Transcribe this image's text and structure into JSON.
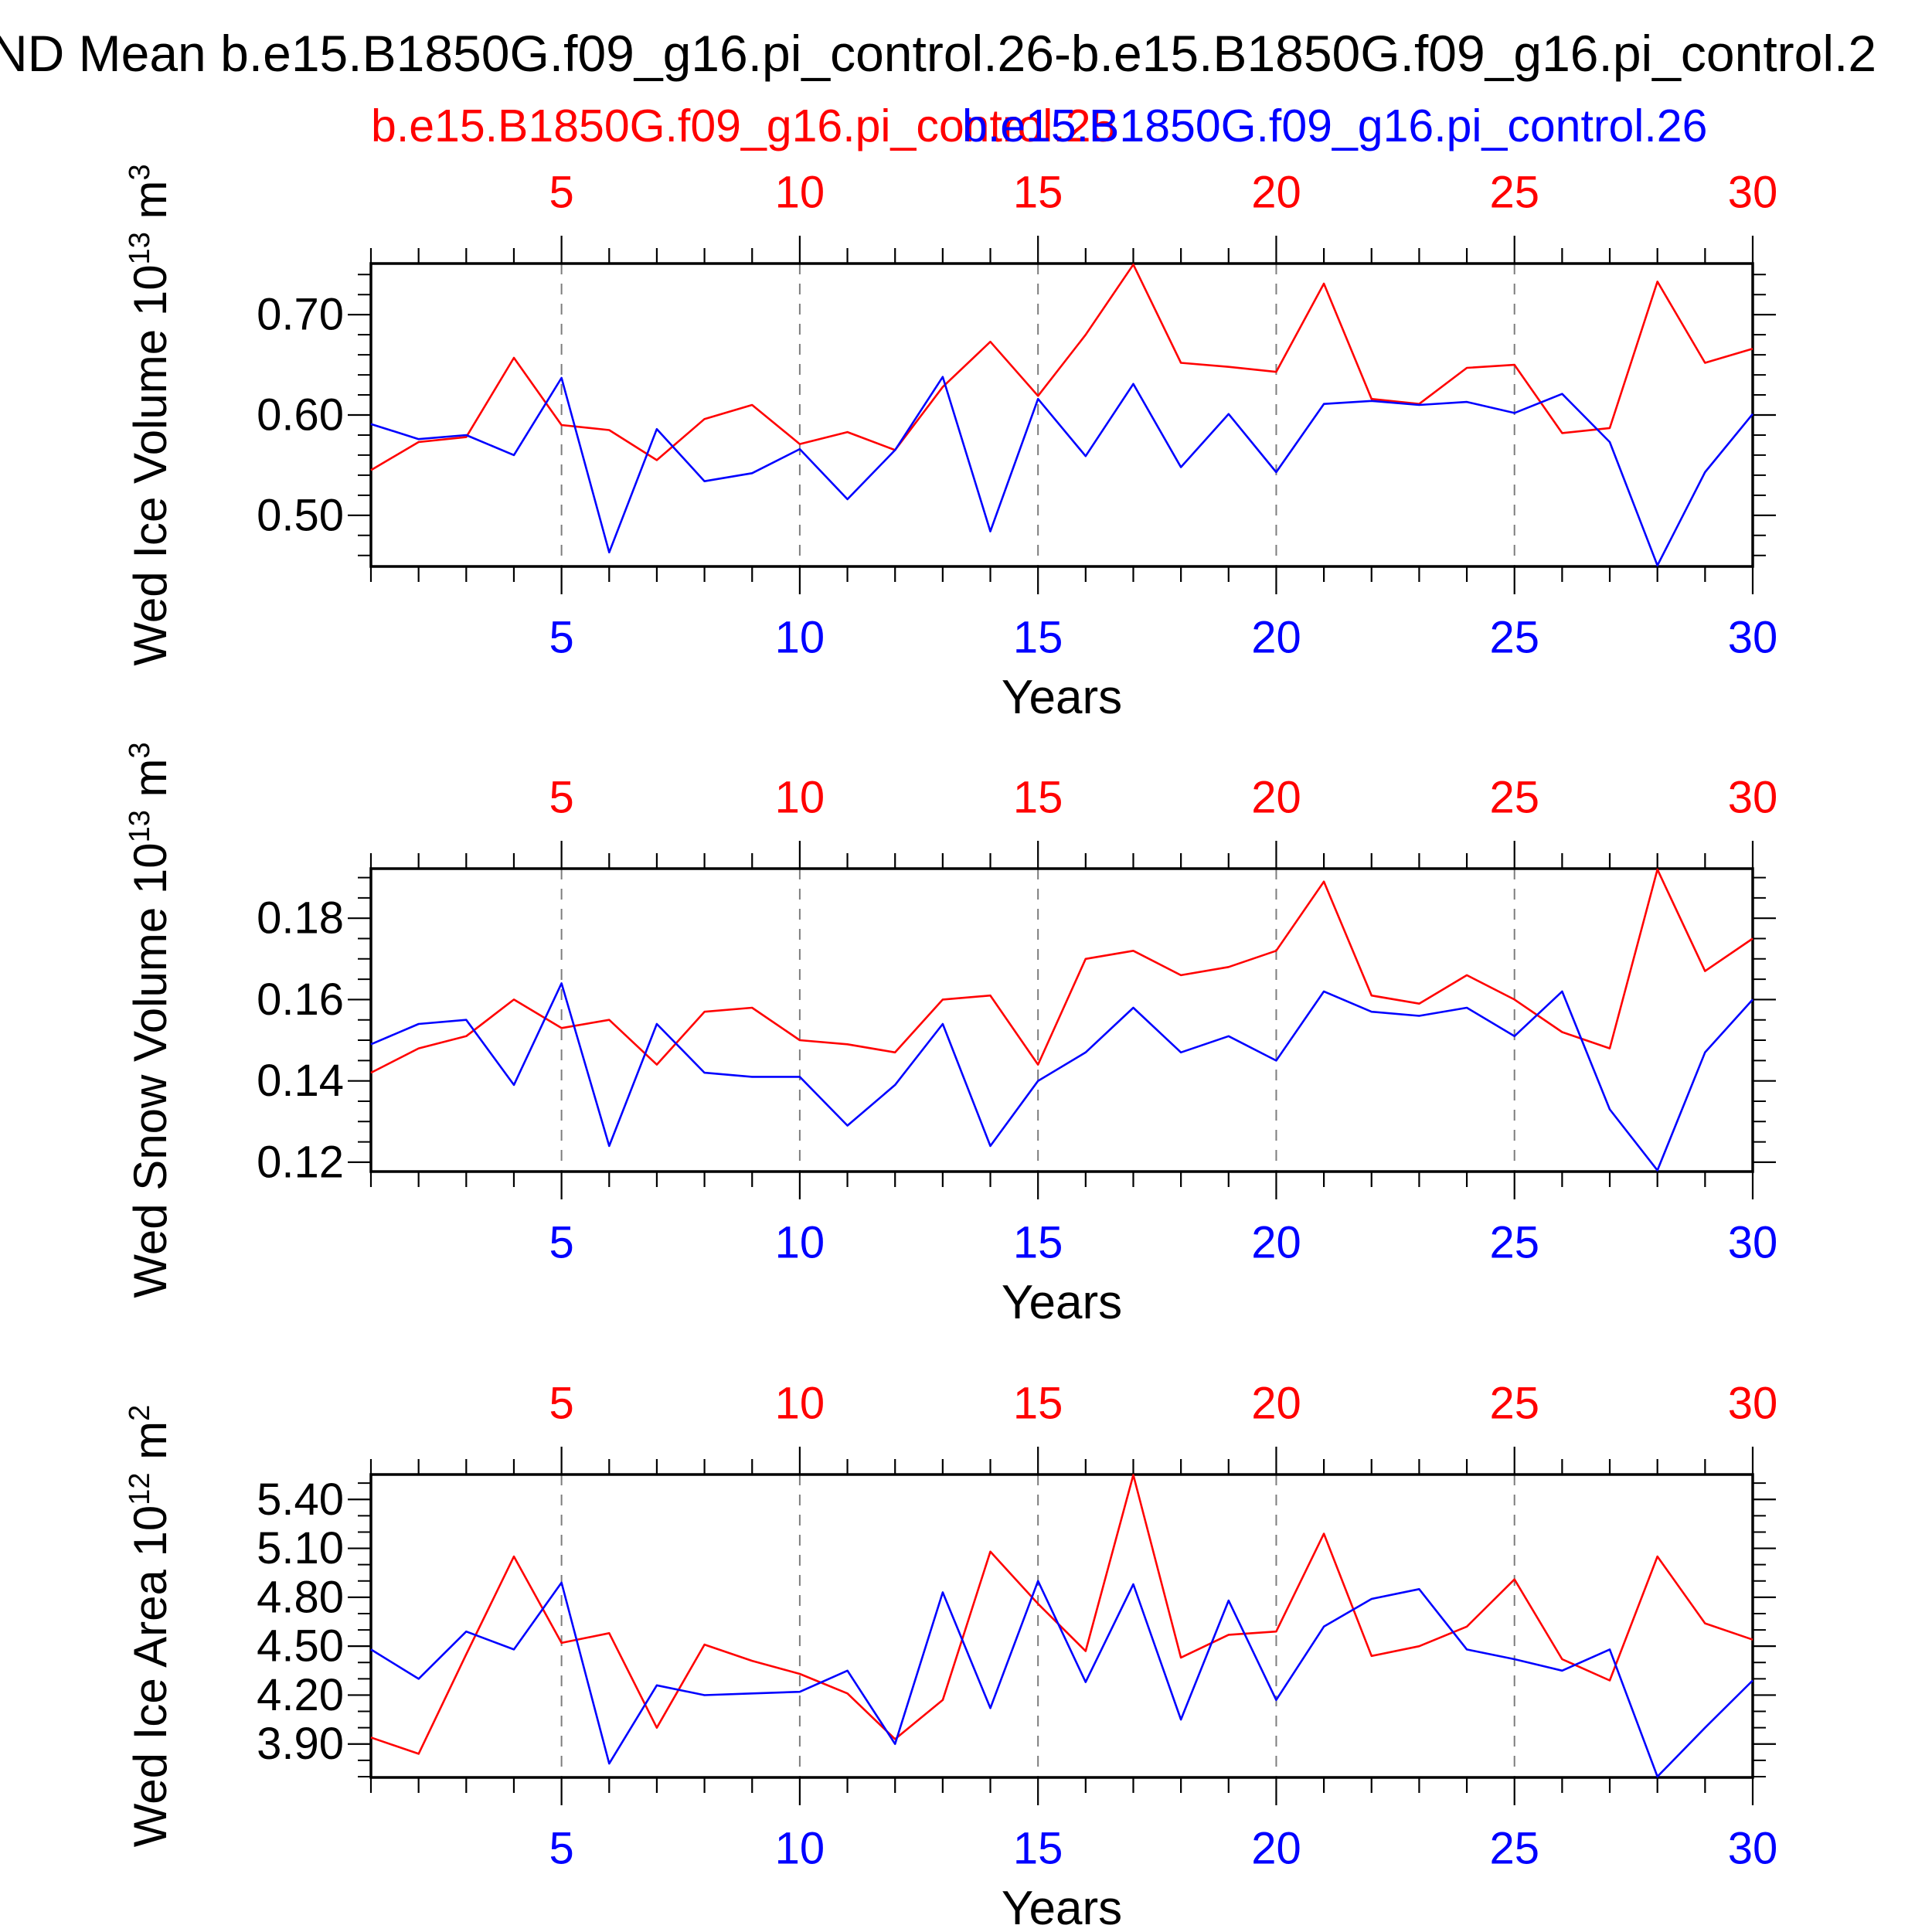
{
  "title": "ND Mean b.e15.B1850G.f09_g16.pi_control.26-b.e15.B1850G.f09_g16.pi_control.2",
  "legend": {
    "red": "b.e15.B1850G.f09_g16.pi_control.25",
    "blue": "b.e15.B1850G.f09_g16.pi_control.26"
  },
  "xlabel": "Years",
  "x_ticks": [
    5,
    10,
    15,
    20,
    25,
    30
  ],
  "colors": {
    "red": "#ff0000",
    "blue": "#0000ff",
    "grid": "#7d7d7d",
    "axis": "#000000",
    "text": "#000000"
  },
  "chart_data": [
    {
      "type": "line",
      "ylabel": {
        "base": "Wed Ice Volume 10",
        "exp": "13",
        "unit": " m",
        "unit_exp": "3"
      },
      "xlabel": "Years",
      "x_range": [
        1,
        30
      ],
      "x_major_ticks": [
        5,
        10,
        15,
        20,
        25,
        30
      ],
      "ylim": [
        0.449,
        0.751
      ],
      "y_major_ticks": [
        0.5,
        0.6,
        0.7
      ],
      "y_minor_step": 0.02,
      "y_minor_range": [
        0.46,
        0.74
      ],
      "grid": "vertical-dashed",
      "legend_position": "top-overlapping",
      "series": [
        {
          "name": "b.e15.B1850G.f09_g16.pi_control.25",
          "color_key": "red",
          "values": [
            0.545,
            0.573,
            0.578,
            0.657,
            0.59,
            0.585,
            0.555,
            0.596,
            0.61,
            0.571,
            0.583,
            0.565,
            0.628,
            0.673,
            0.619,
            0.68,
            0.75,
            0.652,
            0.648,
            0.643,
            0.731,
            0.616,
            0.611,
            0.647,
            0.65,
            0.582,
            0.587,
            0.733,
            0.652,
            0.666
          ]
        },
        {
          "name": "b.e15.B1850G.f09_g16.pi_control.26",
          "color_key": "blue",
          "values": [
            0.591,
            0.576,
            0.58,
            0.56,
            0.637,
            0.463,
            0.586,
            0.534,
            0.542,
            0.566,
            0.516,
            0.565,
            0.638,
            0.484,
            0.616,
            0.559,
            0.631,
            0.548,
            0.601,
            0.543,
            0.611,
            0.614,
            0.61,
            0.613,
            0.602,
            0.621,
            0.573,
            0.45,
            0.543,
            0.601
          ]
        }
      ]
    },
    {
      "type": "line",
      "ylabel": {
        "base": "Wed Snow Volume 10",
        "exp": "13",
        "unit": " m",
        "unit_exp": "3"
      },
      "xlabel": "Years",
      "x_range": [
        1,
        30
      ],
      "x_major_ticks": [
        5,
        10,
        15,
        20,
        25,
        30
      ],
      "ylim": [
        0.1177,
        0.1922
      ],
      "y_major_ticks": [
        0.12,
        0.14,
        0.16,
        0.18
      ],
      "y_minor_step": 0.005,
      "y_minor_range": [
        0.12,
        0.19
      ],
      "grid": "vertical-dashed",
      "series": [
        {
          "name": "b.e15.B1850G.f09_g16.pi_control.25",
          "color_key": "red",
          "values": [
            0.142,
            0.148,
            0.151,
            0.16,
            0.153,
            0.155,
            0.144,
            0.157,
            0.158,
            0.15,
            0.149,
            0.147,
            0.16,
            0.161,
            0.144,
            0.17,
            0.172,
            0.166,
            0.168,
            0.172,
            0.189,
            0.161,
            0.159,
            0.166,
            0.16,
            0.152,
            0.148,
            0.192,
            0.167,
            0.175
          ]
        },
        {
          "name": "b.e15.B1850G.f09_g16.pi_control.26",
          "color_key": "blue",
          "values": [
            0.149,
            0.154,
            0.155,
            0.139,
            0.164,
            0.124,
            0.154,
            0.142,
            0.141,
            0.141,
            0.129,
            0.139,
            0.154,
            0.124,
            0.14,
            0.147,
            0.158,
            0.147,
            0.151,
            0.145,
            0.162,
            0.157,
            0.156,
            0.158,
            0.151,
            0.162,
            0.133,
            0.118,
            0.147,
            0.16
          ]
        }
      ]
    },
    {
      "type": "line",
      "ylabel": {
        "base": "Wed Ice Area 10",
        "exp": "12",
        "unit": " m",
        "unit_exp": "2"
      },
      "xlabel": "Years",
      "x_range": [
        1,
        30
      ],
      "x_major_ticks": [
        5,
        10,
        15,
        20,
        25,
        30
      ],
      "ylim": [
        3.695,
        5.553
      ],
      "y_major_ticks": [
        3.9,
        4.2,
        4.5,
        4.8,
        5.1,
        5.4
      ],
      "y_minor_step": 0.1,
      "y_minor_range": [
        3.7,
        5.5
      ],
      "grid": "vertical-dashed",
      "series": [
        {
          "name": "b.e15.B1850G.f09_g16.pi_control.25",
          "color_key": "red",
          "values": [
            3.94,
            3.84,
            4.45,
            5.05,
            4.52,
            4.58,
            4.0,
            4.51,
            4.41,
            4.33,
            4.21,
            3.93,
            4.17,
            5.08,
            4.76,
            4.47,
            5.55,
            4.43,
            4.57,
            4.59,
            5.19,
            4.44,
            4.5,
            4.62,
            4.91,
            4.42,
            4.29,
            5.05,
            4.64,
            4.54
          ]
        },
        {
          "name": "b.e15.B1850G.f09_g16.pi_control.26",
          "color_key": "blue",
          "values": [
            4.48,
            4.3,
            4.59,
            4.48,
            4.89,
            3.78,
            4.26,
            4.2,
            4.21,
            4.22,
            4.35,
            3.9,
            4.83,
            4.12,
            4.9,
            4.28,
            4.88,
            4.05,
            4.78,
            4.17,
            4.62,
            4.79,
            4.85,
            4.48,
            4.42,
            4.35,
            4.48,
            3.7,
            4.0,
            4.29
          ]
        }
      ]
    }
  ]
}
